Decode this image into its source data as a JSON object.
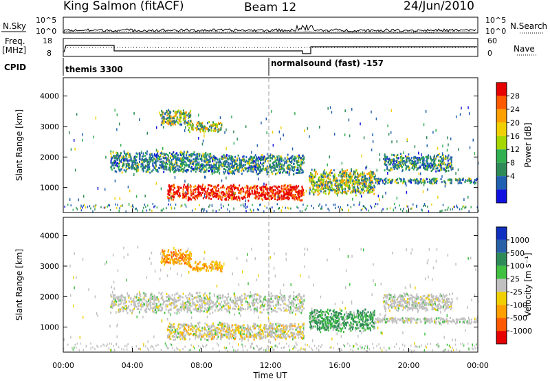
{
  "header": {
    "station": "King Salmon (fitACF)",
    "beam": "Beam 12",
    "date": "24/Jun/2010"
  },
  "strip": {
    "nsky_label": "N.Sky",
    "nsearch_label": "N.Search",
    "nsky_ticks": [
      "10^5",
      "10^0"
    ],
    "nsky_ticks_right": [
      "10^5",
      "10^0"
    ],
    "freq_label": "Freq.",
    "freq_unit": "[MHz]",
    "freq_ticks": [
      "18",
      "8"
    ],
    "nave_label": "Nave",
    "nave_ticks": [
      "60",
      "0"
    ],
    "cpid_label": "CPID",
    "cpid_segments": [
      {
        "start_hour": 0,
        "label": "themis 3300"
      },
      {
        "start_hour": 12,
        "label": "normalsound (fast) -157"
      }
    ]
  },
  "chart_data": [
    {
      "type": "heatmap",
      "name": "power-panel",
      "ylabel": "Slant Range [km]",
      "xlabel": "",
      "xlim_hours": [
        0,
        24
      ],
      "ylim": [
        180,
        4600
      ],
      "yticks": [
        1000,
        2000,
        3000,
        4000
      ],
      "colorbar": {
        "label": "Power [dB]",
        "ticks": [
          "28",
          "24",
          "20",
          "16",
          "12",
          "8",
          "4"
        ],
        "colors": [
          "#e60000",
          "#ff5a00",
          "#ff9f00",
          "#f0d000",
          "#a6d800",
          "#30b050",
          "#2e8b57",
          "#2060b0",
          "#1010e0"
        ]
      },
      "echo_regions": [
        {
          "t0": 5.6,
          "t1": 7.4,
          "r0": 3000,
          "r1": 3550,
          "level": "mid"
        },
        {
          "t0": 7.2,
          "t1": 9.2,
          "r0": 2800,
          "r1": 3150,
          "level": "mid"
        },
        {
          "t0": 2.7,
          "t1": 8.5,
          "r0": 1450,
          "r1": 2200,
          "level": "low"
        },
        {
          "t0": 8.5,
          "t1": 13.9,
          "r0": 1400,
          "r1": 2100,
          "level": "low"
        },
        {
          "t0": 6.0,
          "t1": 13.9,
          "r0": 550,
          "r1": 1100,
          "level": "high"
        },
        {
          "t0": 14.2,
          "t1": 18.0,
          "r0": 700,
          "r1": 1600,
          "level": "mid"
        },
        {
          "t0": 18.0,
          "t1": 24.0,
          "r0": 1100,
          "r1": 1300,
          "level": "low"
        },
        {
          "t0": 18.5,
          "t1": 22.5,
          "r0": 1500,
          "r1": 2100,
          "level": "low"
        }
      ]
    },
    {
      "type": "heatmap",
      "name": "velocity-panel",
      "ylabel": "Slant Range [km]",
      "xlabel": "Time UT",
      "xlim_hours": [
        0,
        24
      ],
      "ylim": [
        180,
        4600
      ],
      "yticks": [
        1000,
        2000,
        3000,
        4000
      ],
      "xticks": [
        "00:00",
        "04:00",
        "08:00",
        "12:00",
        "16:00",
        "20:00",
        "00:00"
      ],
      "colorbar": {
        "label": "Velocity [m s⁻¹]",
        "ticks": [
          "1000",
          "500",
          "100",
          "25",
          "-25",
          "-100",
          "-500",
          "-1000"
        ],
        "colors": [
          "#1030c0",
          "#2860a8",
          "#2e8b57",
          "#40c040",
          "#c0c0c0",
          "#f0d000",
          "#ff9f00",
          "#ff5a00",
          "#e60000"
        ]
      },
      "echo_regions": [
        {
          "t0": 5.6,
          "t1": 7.4,
          "r0": 3000,
          "r1": 3550,
          "level": "neg"
        },
        {
          "t0": 7.2,
          "t1": 9.2,
          "r0": 2800,
          "r1": 3150,
          "level": "neg"
        },
        {
          "t0": 2.7,
          "t1": 13.9,
          "r0": 1400,
          "r1": 2150,
          "level": "zero"
        },
        {
          "t0": 6.0,
          "t1": 13.9,
          "r0": 550,
          "r1": 1150,
          "level": "mixed"
        },
        {
          "t0": 14.2,
          "t1": 18.0,
          "r0": 800,
          "r1": 1600,
          "level": "pos"
        },
        {
          "t0": 18.0,
          "t1": 24.0,
          "r0": 1100,
          "r1": 1300,
          "level": "zero"
        },
        {
          "t0": 18.5,
          "t1": 22.5,
          "r0": 1500,
          "r1": 2100,
          "level": "zero"
        }
      ]
    }
  ]
}
